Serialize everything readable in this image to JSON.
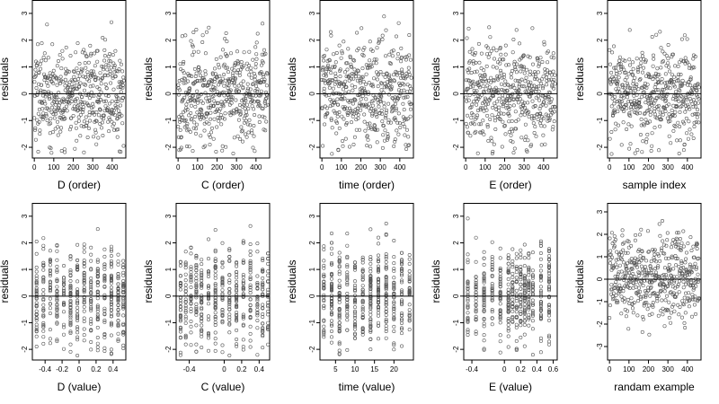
{
  "chart_data": [
    {
      "type": "scatter",
      "xlabel": "D (order)",
      "ylabel": "residuals",
      "xlim": [
        -10,
        470
      ],
      "ylim": [
        -2.4,
        3.5
      ],
      "xticks": [
        0,
        100,
        200,
        300,
        400
      ],
      "xtick_labels": [
        "0",
        "100",
        "200",
        "300",
        "400"
      ],
      "yticks": [
        -2,
        -1,
        0,
        1,
        2,
        3
      ],
      "ytick_labels": [
        "-2",
        "-1",
        "0",
        "1",
        "2",
        "3"
      ],
      "hline": 0,
      "dist": "order",
      "seed": 11
    },
    {
      "type": "scatter",
      "xlabel": "C (order)",
      "ylabel": "residuals",
      "xlim": [
        -10,
        470
      ],
      "ylim": [
        -2.4,
        3.5
      ],
      "xticks": [
        0,
        100,
        200,
        300,
        400
      ],
      "xtick_labels": [
        "0",
        "100",
        "200",
        "300",
        "400"
      ],
      "yticks": [
        -2,
        -1,
        0,
        1,
        2,
        3
      ],
      "ytick_labels": [
        "-2",
        "-1",
        "0",
        "1",
        "2",
        "3"
      ],
      "hline": 0,
      "dist": "order",
      "seed": 23
    },
    {
      "type": "scatter",
      "xlabel": "time (order)",
      "ylabel": "residuals",
      "xlim": [
        -10,
        470
      ],
      "ylim": [
        -2.4,
        3.5
      ],
      "xticks": [
        0,
        100,
        200,
        300,
        400
      ],
      "xtick_labels": [
        "0",
        "100",
        "200",
        "300",
        "400"
      ],
      "yticks": [
        -2,
        -1,
        0,
        1,
        2,
        3
      ],
      "ytick_labels": [
        "-2",
        "-1",
        "0",
        "1",
        "2",
        "3"
      ],
      "hline": 0,
      "dist": "order",
      "seed": 37
    },
    {
      "type": "scatter",
      "xlabel": "E (order)",
      "ylabel": "residuals",
      "xlim": [
        -10,
        470
      ],
      "ylim": [
        -2.4,
        3.5
      ],
      "xticks": [
        0,
        100,
        200,
        300,
        400
      ],
      "xtick_labels": [
        "0",
        "100",
        "200",
        "300",
        "400"
      ],
      "yticks": [
        -2,
        -1,
        0,
        1,
        2,
        3
      ],
      "ytick_labels": [
        "-2",
        "-1",
        "0",
        "1",
        "2",
        "3"
      ],
      "hline": 0,
      "dist": "order",
      "seed": 41
    },
    {
      "type": "scatter",
      "xlabel": "sample index",
      "ylabel": "residuals",
      "xlim": [
        -10,
        470
      ],
      "ylim": [
        -2.4,
        3.5
      ],
      "xticks": [
        0,
        100,
        200,
        300,
        400
      ],
      "xtick_labels": [
        "0",
        "100",
        "200",
        "300",
        "400"
      ],
      "yticks": [
        -2,
        -1,
        0,
        1,
        2,
        3
      ],
      "ytick_labels": [
        "-2",
        "-1",
        "0",
        "1",
        "2",
        "3"
      ],
      "hline": 0,
      "dist": "order",
      "seed": 53
    },
    {
      "type": "scatter",
      "xlabel": "D (value)",
      "ylabel": "residuals",
      "xlim": [
        -0.55,
        0.55
      ],
      "ylim": [
        -2.4,
        3.5
      ],
      "xticks": [
        -0.4,
        -0.2,
        0,
        0.2,
        0.4
      ],
      "xtick_labels": [
        "-0.4",
        "-0.2",
        "0",
        "0.2",
        "0.4"
      ],
      "yticks": [
        -2,
        -1,
        0,
        1,
        2,
        3
      ],
      "ytick_labels": [
        "-2",
        "-1",
        "0",
        "1",
        "2",
        "3"
      ],
      "hline": 0,
      "dist": "discrete",
      "levels": [
        -0.5,
        -0.42,
        -0.34,
        -0.26,
        -0.18,
        -0.1,
        -0.02,
        0.06,
        0.14,
        0.22,
        0.3,
        0.38,
        0.46,
        0.52
      ],
      "seed": 61
    },
    {
      "type": "scatter",
      "xlabel": "C (value)",
      "ylabel": "residuals",
      "xlim": [
        -0.55,
        0.52
      ],
      "ylim": [
        -2.4,
        3.5
      ],
      "xticks": [
        -0.4,
        0,
        0.2,
        0.4
      ],
      "xtick_labels": [
        "-0.4",
        "0",
        "0.2",
        "0.4"
      ],
      "yticks": [
        -2,
        -1,
        0,
        1,
        2,
        3
      ],
      "ytick_labels": [
        "-2",
        "-1",
        "0",
        "1",
        "2",
        "3"
      ],
      "hline": 0,
      "dist": "discrete",
      "levels": [
        -0.5,
        -0.44,
        -0.38,
        -0.32,
        -0.26,
        -0.18,
        -0.1,
        -0.02,
        0.06,
        0.14,
        0.22,
        0.3,
        0.38,
        0.44,
        0.5
      ],
      "seed": 71
    },
    {
      "type": "scatter",
      "xlabel": "time (value)",
      "ylabel": "residuals",
      "xlim": [
        1,
        25
      ],
      "ylim": [
        -2.4,
        3.5
      ],
      "xticks": [
        5,
        10,
        15,
        20
      ],
      "xtick_labels": [
        "5",
        "10",
        "15",
        "20"
      ],
      "yticks": [
        -2,
        -1,
        0,
        1,
        2,
        3
      ],
      "ytick_labels": [
        "-2",
        "-1",
        "0",
        "1",
        "2",
        "3"
      ],
      "hline": 0,
      "dist": "discrete",
      "levels": [
        2,
        4,
        6,
        8,
        10,
        12,
        14,
        16,
        18,
        20,
        22,
        24
      ],
      "seed": 83
    },
    {
      "type": "scatter",
      "xlabel": "E (value)",
      "ylabel": "residuals",
      "xlim": [
        -0.5,
        0.65
      ],
      "ylim": [
        -2.4,
        3.5
      ],
      "xticks": [
        -0.4,
        0,
        0.2,
        0.4,
        0.6
      ],
      "xtick_labels": [
        "-0.4",
        "0",
        "0.2",
        "0.4",
        "0.6"
      ],
      "yticks": [
        -2,
        -1,
        0,
        1,
        2,
        3
      ],
      "ytick_labels": [
        "-2",
        "-1",
        "0",
        "1",
        "2",
        "3"
      ],
      "hline": 0,
      "dist": "discrete",
      "levels": [
        -0.45,
        -0.35,
        -0.25,
        -0.15,
        -0.05,
        0.05,
        0.1,
        0.15,
        0.2,
        0.25,
        0.3,
        0.35,
        0.45,
        0.55
      ],
      "seed": 97
    },
    {
      "type": "scatter",
      "xlabel": "randam example",
      "ylabel": "residuals",
      "xlim": [
        -10,
        470
      ],
      "ylim": [
        -3.6,
        3.4
      ],
      "xticks": [
        0,
        100,
        200,
        300,
        400
      ],
      "xtick_labels": [
        "0",
        "100",
        "200",
        "300",
        "400"
      ],
      "yticks": [
        -3,
        -2,
        -1,
        0,
        1,
        2,
        3
      ],
      "ytick_labels": [
        "-3",
        "-2",
        "-1",
        "0",
        "1",
        "2",
        "3"
      ],
      "hline": 0,
      "dist": "order",
      "seed": 109
    }
  ]
}
